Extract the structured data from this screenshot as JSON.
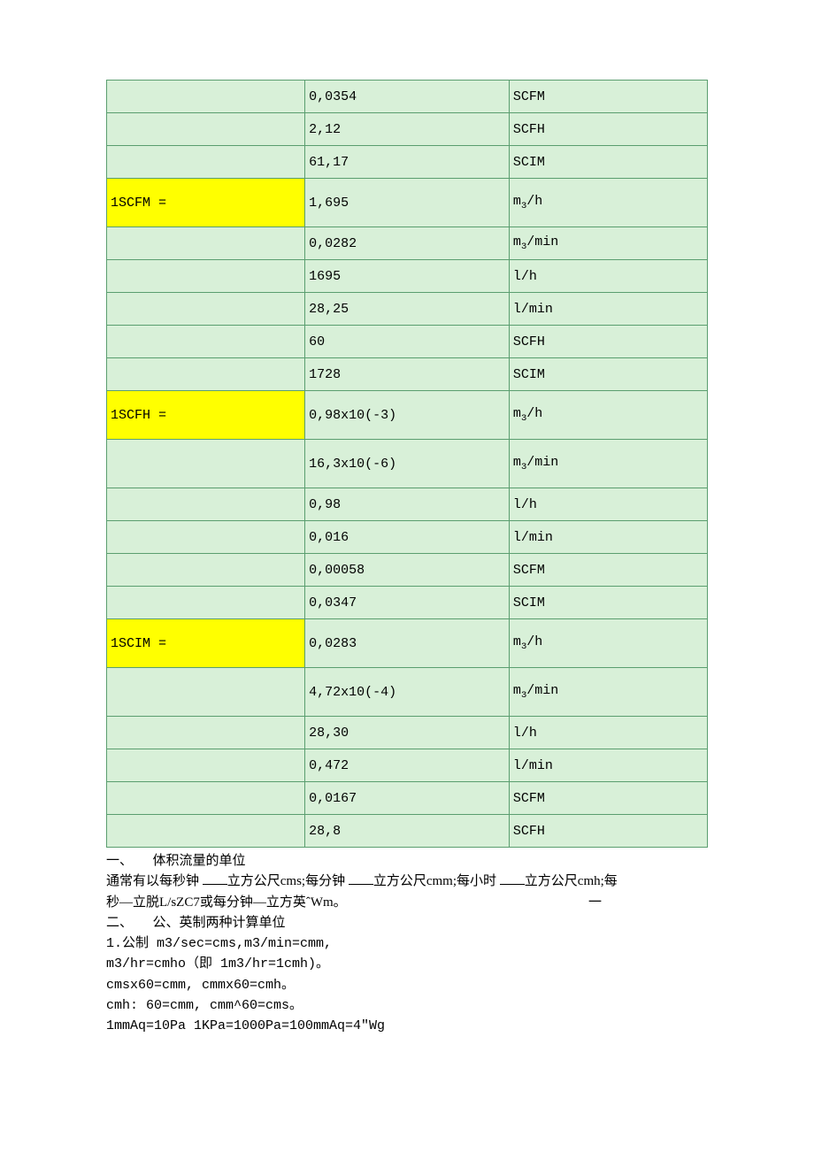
{
  "table": {
    "colors": {
      "row_bg": "#d8f0d8",
      "highlight_bg": "#ffff00",
      "border": "#5a9e6f",
      "text": "#000000"
    },
    "font": {
      "family": "Courier New",
      "size_pt": 11
    },
    "rows": [
      {
        "col1": "",
        "col2": "0,0354",
        "col3": "SCFM",
        "hl": false,
        "tall": false
      },
      {
        "col1": "",
        "col2": "2,12",
        "col3": "SCFH",
        "hl": false,
        "tall": false
      },
      {
        "col1": "",
        "col2": "61,17",
        "col3": "SCIM",
        "hl": false,
        "tall": false
      },
      {
        "col1": "1SCFM =",
        "col2": "1,695",
        "col3": "m3/h",
        "hl": true,
        "tall": true,
        "sub3": true
      },
      {
        "col1": "",
        "col2": "0,0282",
        "col3": "m3/min",
        "hl": false,
        "tall": false,
        "sub3": true
      },
      {
        "col1": "",
        "col2": "1695",
        "col3": "l/h",
        "hl": false,
        "tall": false
      },
      {
        "col1": "",
        "col2": "28,25",
        "col3": "l/min",
        "hl": false,
        "tall": false
      },
      {
        "col1": "",
        "col2": "60",
        "col3": "SCFH",
        "hl": false,
        "tall": false
      },
      {
        "col1": "",
        "col2": "1728",
        "col3": "SCIM",
        "hl": false,
        "tall": false
      },
      {
        "col1": "1SCFH =",
        "col2": "0,98x10(-3)",
        "col3": "m3/h",
        "hl": true,
        "tall": true,
        "sub3": true
      },
      {
        "col1": "",
        "col2": "16,3x10(-6)",
        "col3": "m3/min",
        "hl": false,
        "tall": true,
        "sub3": true
      },
      {
        "col1": "",
        "col2": "0,98",
        "col3": "l/h",
        "hl": false,
        "tall": false
      },
      {
        "col1": "",
        "col2": "0,016",
        "col3": "l/min",
        "hl": false,
        "tall": false
      },
      {
        "col1": "",
        "col2": "0,00058",
        "col3": "SCFM",
        "hl": false,
        "tall": false
      },
      {
        "col1": "",
        "col2": "0,0347",
        "col3": "SCIM",
        "hl": false,
        "tall": false
      },
      {
        "col1": "1SCIM =",
        "col2": "0,0283",
        "col3": "m3/h",
        "hl": true,
        "tall": true,
        "sub3": true
      },
      {
        "col1": "",
        "col2": "4,72x10(-4)",
        "col3": "m3/min",
        "hl": false,
        "tall": true,
        "sub3": true
      },
      {
        "col1": "",
        "col2": "28,30",
        "col3": "l/h",
        "hl": false,
        "tall": false
      },
      {
        "col1": "",
        "col2": "0,472",
        "col3": "l/min",
        "hl": false,
        "tall": false
      },
      {
        "col1": "",
        "col2": "0,0167",
        "col3": "SCFM",
        "hl": false,
        "tall": false
      },
      {
        "col1": "",
        "col2": "28,8",
        "col3": "SCFH",
        "hl": false,
        "tall": false
      }
    ]
  },
  "notes": {
    "heading1_prefix": "一、　　体积流量的单位",
    "line2_a": "通常有以每秒钟 ",
    "line2_b": "立方公尺cms;每分钟 ",
    "line2_c": "立方公尺cmm;每小时 ",
    "line2_d": "立方公尺cmh;每",
    "line3": "秒—立脱L/sZC7或每分钟—立方英ˆWm。",
    "line3_dash": "一",
    "heading2": "二、　　公、英制两种计算单位",
    "line5": "1.公制 m3/sec=cms,m3/min=cmm,",
    "line6": "m3/hr=cmho（即 1m3/hr=1cmh)。",
    "line7": "cmsx60=cmm, cmmx60=cmh。",
    "line8": " cmh: 60=cmm, cmm^60=cms。",
    "line9": "1mmAq=10Pa 1KPa=1000Pa=100mmAq=4\"Wg"
  }
}
